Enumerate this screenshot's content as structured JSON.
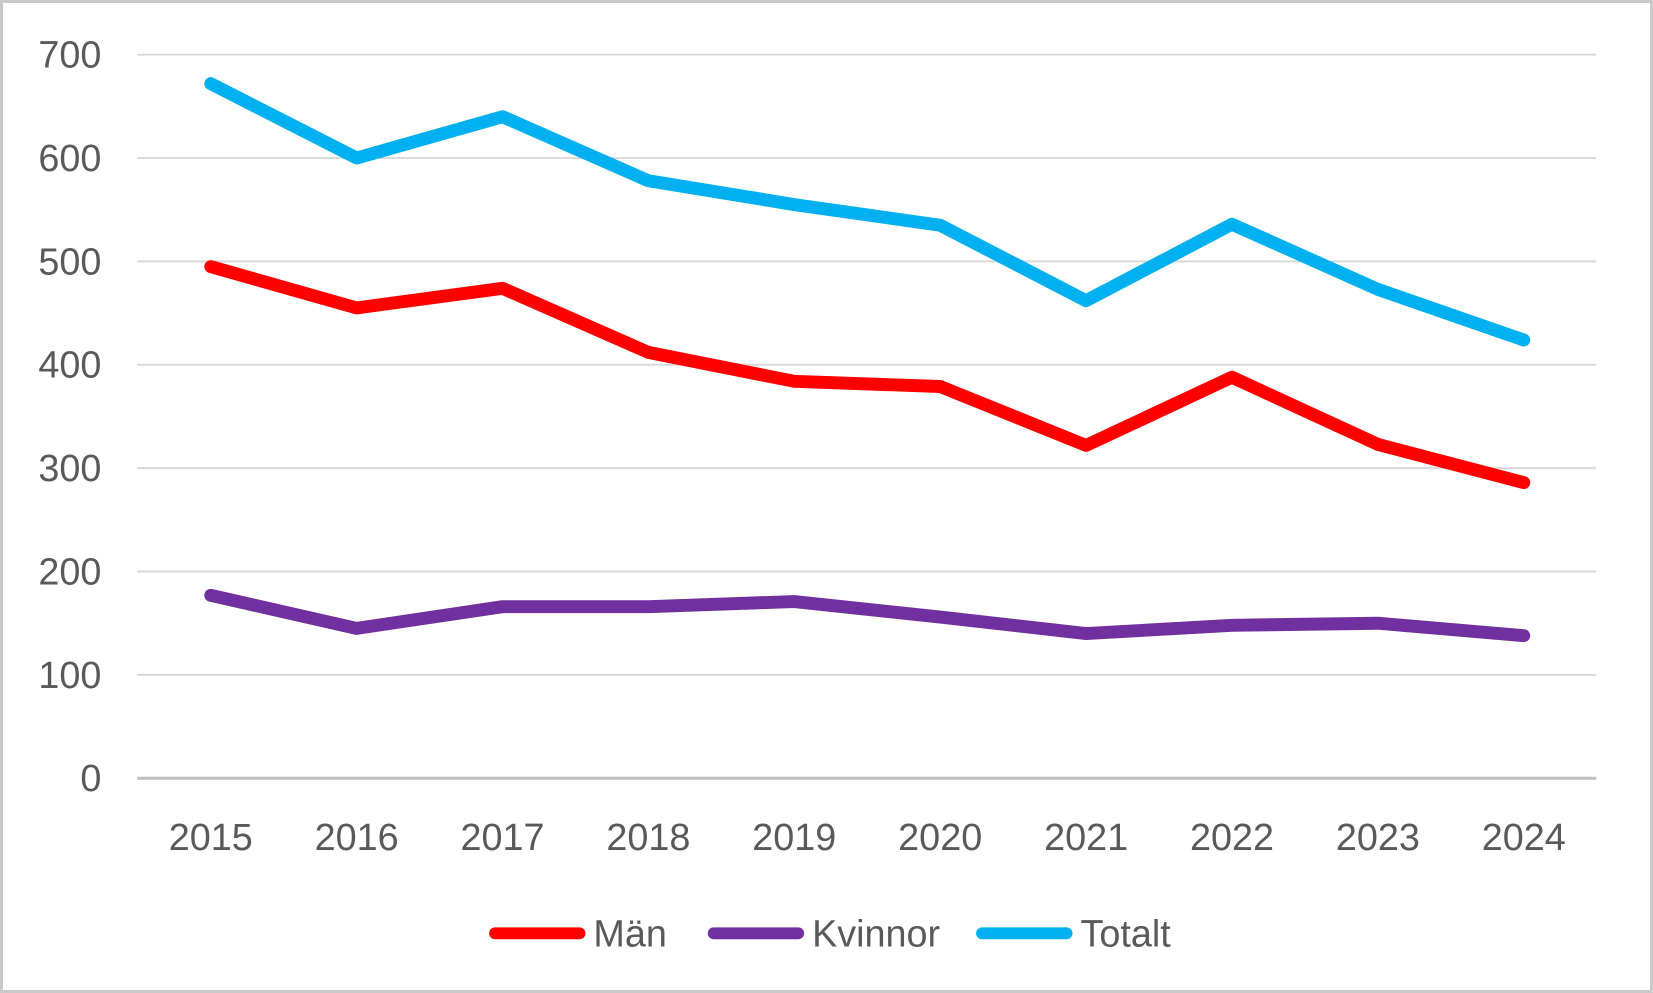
{
  "chart_data": {
    "type": "line",
    "title": "",
    "xlabel": "",
    "ylabel": "",
    "categories": [
      "2015",
      "2016",
      "2017",
      "2018",
      "2019",
      "2020",
      "2021",
      "2022",
      "2023",
      "2024"
    ],
    "series": [
      {
        "name": "Män",
        "color": "#FF0000",
        "values": [
          495,
          455,
          474,
          412,
          384,
          379,
          322,
          388,
          323,
          286
        ]
      },
      {
        "name": "Kvinnor",
        "color": "#7030A0",
        "values": [
          177,
          145,
          166,
          166,
          171,
          156,
          140,
          148,
          150,
          138
        ]
      },
      {
        "name": "Totalt",
        "color": "#00B0F0",
        "values": [
          672,
          600,
          640,
          578,
          555,
          535,
          462,
          536,
          473,
          424
        ]
      }
    ],
    "ylim": [
      0,
      700
    ],
    "ytick_step": 100,
    "yticks": [
      "0",
      "100",
      "200",
      "300",
      "400",
      "500",
      "600",
      "700"
    ],
    "grid": true,
    "legend_position": "bottom",
    "legend_order": [
      "Män",
      "Kvinnor",
      "Totalt"
    ],
    "colors": {
      "gridline": "#D9D9D9",
      "axis_line": "#BFBFBF",
      "tick_label": "#595959",
      "legend_label": "#595959",
      "background": "#FFFFFF"
    }
  }
}
